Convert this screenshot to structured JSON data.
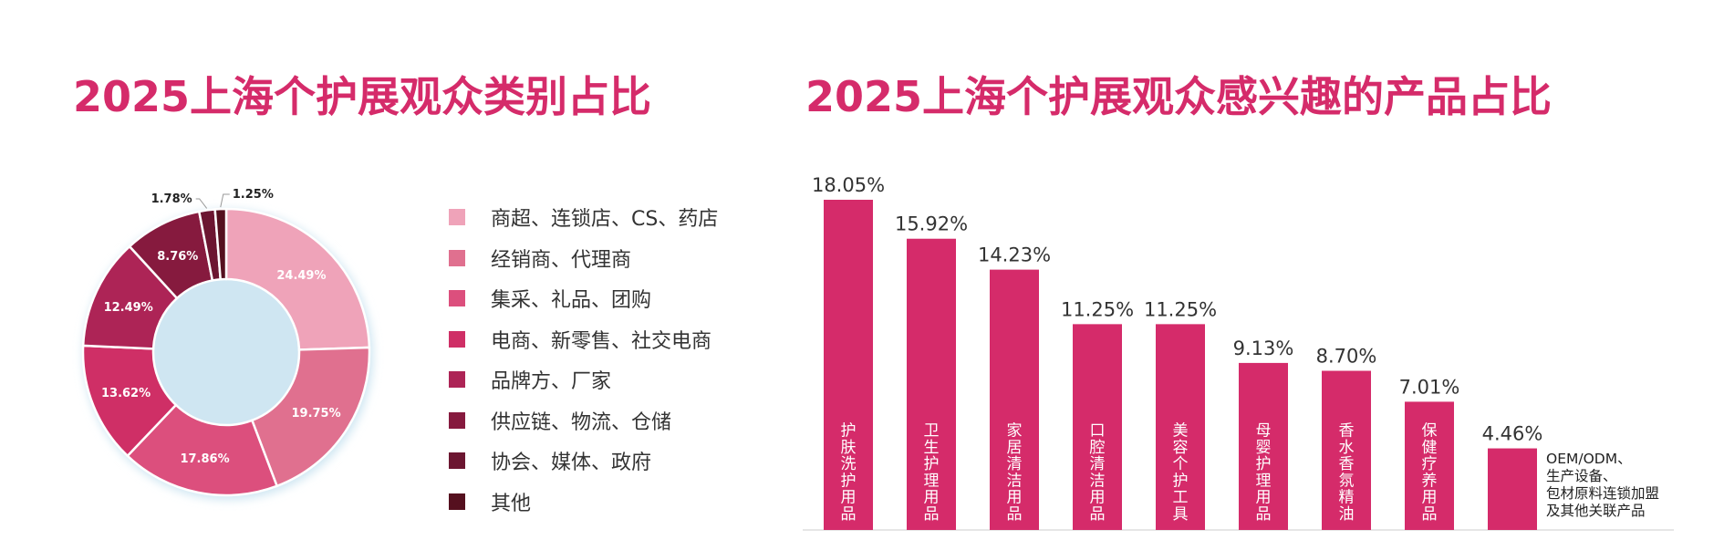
{
  "chart_data": [
    {
      "type": "pie",
      "title": "2025上海个护展观众类别占比",
      "slices": [
        {
          "label": "商超、连锁店、CS、药店",
          "value": 24.49,
          "value_label": "24.49%",
          "color": "#efa3b9"
        },
        {
          "label": "经销商、代理商",
          "value": 19.75,
          "value_label": "19.75%",
          "color": "#e0708f"
        },
        {
          "label": "集采、礼品、团购",
          "value": 17.86,
          "value_label": "17.86%",
          "color": "#dc4f7d"
        },
        {
          "label": "电商、新零售、社交电商",
          "value": 13.62,
          "value_label": "13.62%",
          "color": "#cf2f66"
        },
        {
          "label": "品牌方、厂家",
          "value": 12.49,
          "value_label": "12.49%",
          "color": "#ad2456"
        },
        {
          "label": "供应链、物流、仓储",
          "value": 8.76,
          "value_label": "8.76%",
          "color": "#861a3e"
        },
        {
          "label": "协会、媒体、政府",
          "value": 1.78,
          "value_label": "1.78%",
          "color": "#6c1631"
        },
        {
          "label": "其他",
          "value": 1.25,
          "value_label": "1.25%",
          "color": "#55101f"
        }
      ]
    },
    {
      "type": "bar",
      "title": "2025上海个护展观众感兴趣的产品占比",
      "categories": [
        "护肤洗护用品",
        "卫生护理用品",
        "家居清洁用品",
        "口腔清洁用品",
        "美容个护工具",
        "母婴护理用品",
        "香水香氛精油",
        "保健疗养用品",
        "OEM/ODM、生产设备、包材原料连锁加盟及其他关联产品"
      ],
      "values": [
        18.05,
        15.92,
        14.23,
        11.25,
        11.25,
        9.13,
        8.7,
        7.01,
        4.46
      ],
      "value_labels": [
        "18.05%",
        "15.92%",
        "14.23%",
        "11.25%",
        "11.25%",
        "9.13%",
        "8.70%",
        "7.01%",
        "4.46%"
      ],
      "bar_color": "#d52b6a",
      "xlabel": "",
      "ylabel": ""
    }
  ],
  "last_bar_label_lines": [
    "OEM/ODM、",
    "生产设备、",
    "包材原料连锁加盟",
    "及其他关联产品"
  ]
}
